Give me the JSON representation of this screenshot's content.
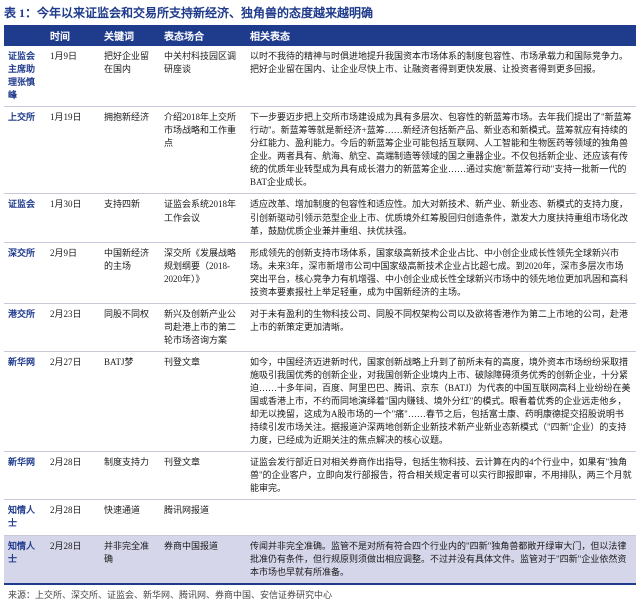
{
  "title": "表 1：今年以来证监会和交易所支持新经济、独角兽的态度越来越明确",
  "header_bg": "#1f3b8c",
  "highlight_bg": "#d6d6eb",
  "columns": [
    "表态者",
    "时间",
    "关键词",
    "表态场合",
    "相关表态"
  ],
  "rows": [
    {
      "c0": "证监会主席助理张慎峰",
      "c1": "1月9日",
      "c2": "把好企业留在国内",
      "c3": "中关村科技园区调研座谈",
      "c4": "以时不我待的精神与时俱进地提升我国资本市场体系的制度包容性、市场承载力和国际竞争力。把好企业留在国内、让企业尽快上市、让融资者得到更快发展、让投资者得到更多回报。"
    },
    {
      "c0": "上交所",
      "c1": "1月19日",
      "c2": "拥抱新经济",
      "c3": "介绍2018年上交所市场战略和工作重点",
      "c4": "下一步要迈步把上交所市场建设成为具有多层次、包容性的新蓝筹市场。去年我们提出了\"新蓝筹行动\"。新蓝筹等就是新经济+蓝筹……新经济包括新产品、新业态和新模式。蓝筹就应有持续的分红能力、盈利能力。今后的新蓝筹企业可能包括互联网、人工智能和生物医药等领域的独角兽企业。两者具有、航海、航空、高端制造等领域的国之重器企业。不仅包括新企业、还应该有传统的优质年业转型成为具有成长潜力的新蓝筹企业……通过实施\"新蓝筹行动\"支持一批新一代的BAT企业成长。"
    },
    {
      "c0": "证监会",
      "c1": "1月30日",
      "c2": "支持四新",
      "c3": "证监会系统2018年工作会议",
      "c4": "适应改革、增加制度的包容性和适应性。加大对新技术、新产业、新业态、新模式的支持力度，引创新驱动引领示范型企业上市、优质境外红筹股回归创造条件，激发大力度扶持重组市场化改革，鼓励优质企业兼并重组、扶优扶强。"
    },
    {
      "c0": "深交所",
      "c1": "2月9日",
      "c2": "中国新经济的主场",
      "c3": "深交所《发展战略规划纲要（2018-2020年）》",
      "c4": "形成领先的创新支持市场体系，国家级高新技术企业占比、中小创企业成长性领先全球新兴市场。未来3年，深市新增市公司中国家级高新技术企业占比超七成。到2020年，深市多层次市场突出平台，核心竞争力有机增强、中小创企业成长性全球新兴市场中的领先地位更加巩固和高科技资本要素报社上举足轻重，成为中国新经济的主场。"
    },
    {
      "c0": "港交所",
      "c1": "2月23日",
      "c2": "同股不同权",
      "c3": "新兴及创新产业公司赴港上市的第二轮市场咨询方案",
      "c4": "对于未有盈利的生物科技公司、同股不同权架构公司以及欲将香港作为第二上市地的公司，赴港上市的新策定更加清晰。"
    },
    {
      "c0": "新华网",
      "c1": "2月27日",
      "c2": "BATJ梦",
      "c3": "刊登文章",
      "c4": "如今，中国经济迈进新时代，国家创新战略上升到了前所未有的高度，境外资本市场纷纷采取措施吸引我国优秀的创新企业，对我国创新企业境内上市、破除障碍须务优秀的创新企业，十分紧迫……十多年间，百度、阿里巴巴、腾讯、京东（BATJ）为代表的中国互联网高科上业纷纷在美国或香港上市，不约而同地演绎着\"国内赚钱、境外分红\"的模式。眼看着优秀的企业远走他乡，却无以挽留，这成为A股市场的一个\"痛\"……春节之后，包括富士康、药明康德提交招股说明书持续引发市场关注。据报道沪深两地创新企业新技术新产业新业态新模式（\"四新\"企业）的支持力度，已经成为近期关注的焦点解决的核心议题。"
    },
    {
      "c0": "新华网",
      "c1": "2月28日",
      "c2": "制度支持力",
      "c3": "刊登文章",
      "c4": "证监会发行部近日对相关券商作出指导，包括生物科技、云计算在内的4个行业中，如果有\"独角兽\"的企业客户，立即向发行部报告，符合相关规定者可以实行即报即审，不用排队，两三个月就能审完。"
    },
    {
      "c0": "知情人士",
      "c1": "2月28日",
      "c2": "快速通道",
      "c3": "腾讯网报道",
      "c4": ""
    },
    {
      "c0": "知情人士",
      "c1": "2月28日",
      "c2": "并非完全准确",
      "c3": "券商中国报道",
      "c4": "传闻并非完全准确。监管不是对所有符合四个行业内的\"四新\"独角兽都敞开绿审大门，但以法律批准仍有条件，但行规原则须做出相应调整。不过并没有具体文件。监管对于\"四新\"企业依然资本市场也早就有所准备。",
      "highlight": true
    }
  ],
  "source": "来源：上交所、深交所、证监会、新华网、腾讯网、券商中国、安信证券研究中心"
}
